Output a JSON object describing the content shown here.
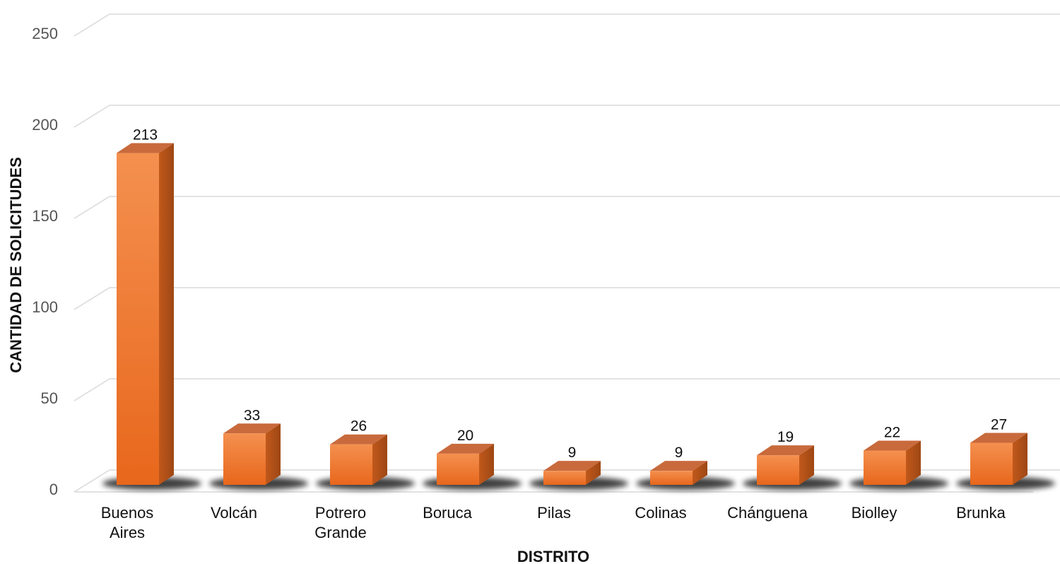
{
  "chart_data": {
    "type": "bar",
    "categories": [
      [
        "Buenos",
        "Aires"
      ],
      [
        "Volcán"
      ],
      [
        "Potrero",
        "Grande"
      ],
      [
        "Boruca"
      ],
      [
        "Pilas"
      ],
      [
        "Colinas"
      ],
      [
        "Chánguena"
      ],
      [
        "Biolley"
      ],
      [
        "Brunka"
      ]
    ],
    "values": [
      213,
      33,
      26,
      20,
      9,
      9,
      19,
      22,
      27
    ],
    "data_labels": [
      "213",
      "33",
      "26",
      "20",
      "9",
      "9",
      "19",
      "22",
      "27"
    ],
    "xlabel": "DISTRITO",
    "ylabel": "CANTIDAD DE SOLICITUDES",
    "ylim": [
      0,
      250
    ],
    "yticks": [
      0,
      50,
      100,
      150,
      200,
      250
    ],
    "grid": true,
    "style": "3d-column",
    "colors": {
      "bar_front_light": "#f4904f",
      "bar_front_dark": "#e8671c",
      "bar_side": "#b4511a",
      "bar_top": "#c86a3c",
      "gridline": "#d9d9d9",
      "tick_text": "#555555"
    }
  }
}
